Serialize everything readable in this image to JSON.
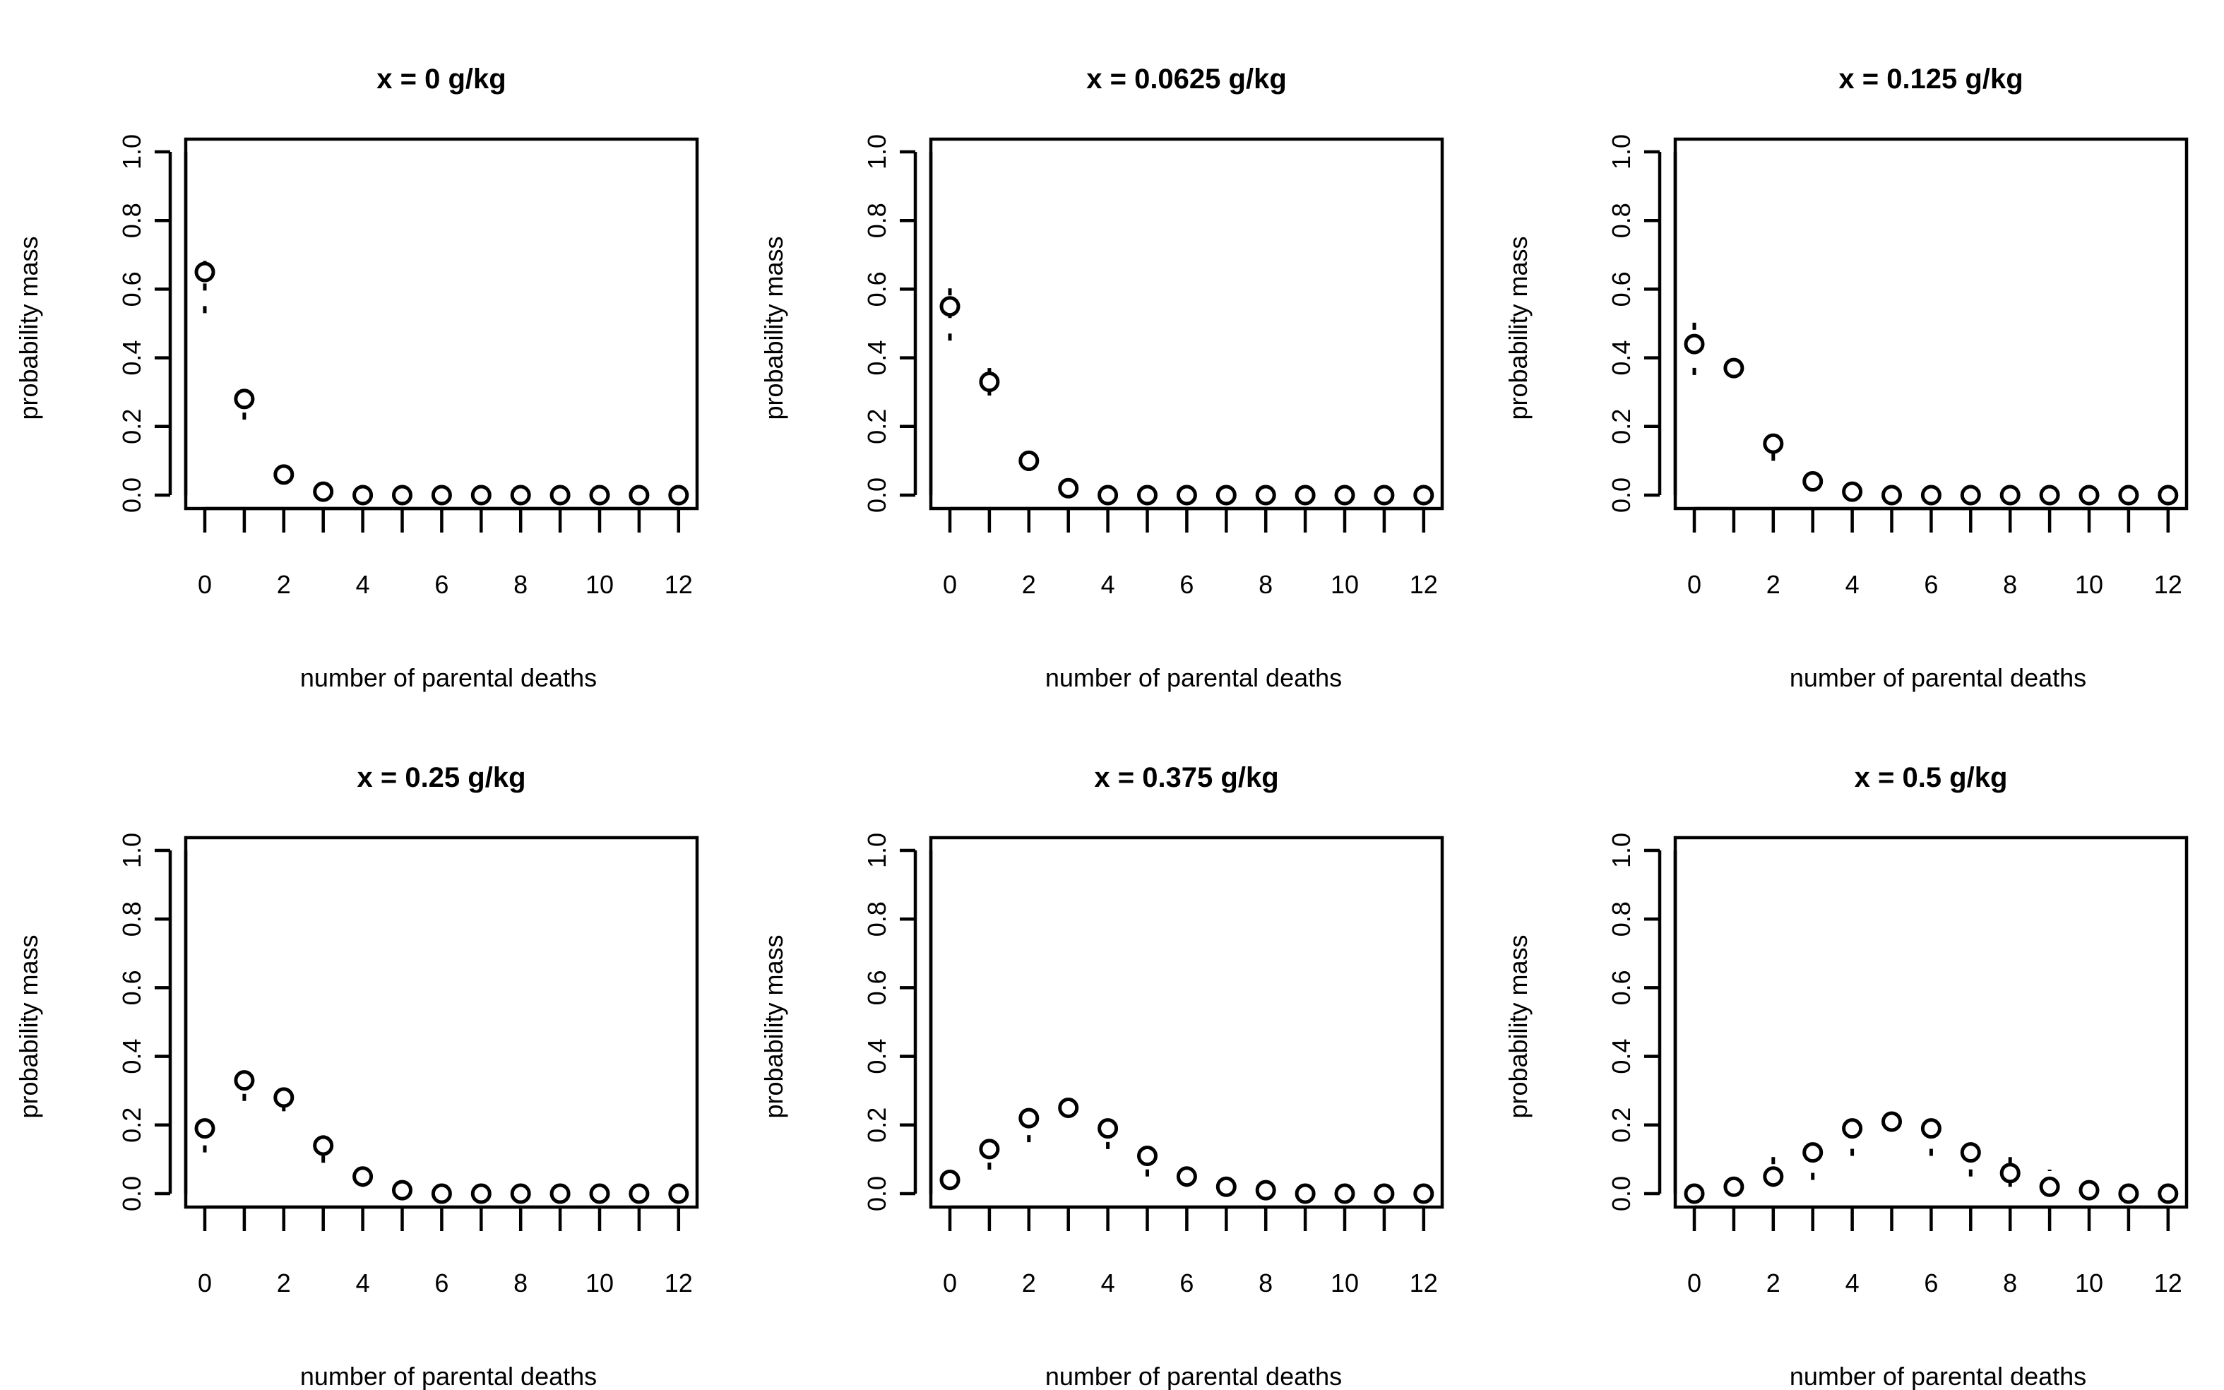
{
  "figure": {
    "xlabel": "number of parental deaths",
    "ylabel": "probability mass"
  },
  "chart_data": [
    {
      "type": "scatter",
      "title": "x = 0 g/kg",
      "xlabel": "number of parental deaths",
      "ylabel": "probability mass",
      "xlim": [
        0,
        12
      ],
      "ylim": [
        0,
        1
      ],
      "x_ticks": [
        "0",
        "2",
        "4",
        "6",
        "8",
        "10",
        "12"
      ],
      "y_ticks": [
        "0.0",
        "0.2",
        "0.4",
        "0.6",
        "0.8",
        "1.0"
      ],
      "x": [
        0,
        1,
        2,
        3,
        4,
        5,
        6,
        7,
        8,
        9,
        10,
        11,
        12
      ],
      "values": [
        0.65,
        0.28,
        0.06,
        0.01,
        0,
        0,
        0,
        0,
        0,
        0,
        0,
        0,
        0
      ],
      "lower": [
        0.53,
        0.22,
        0.04,
        0.0,
        0,
        0,
        0,
        0,
        0,
        0,
        0,
        0,
        0
      ],
      "upper": [
        0.72,
        0.35,
        0.1,
        0.02,
        0,
        0,
        0,
        0,
        0,
        0,
        0,
        0,
        0
      ]
    },
    {
      "type": "scatter",
      "title": "x = 0.0625 g/kg",
      "xlabel": "number of parental deaths",
      "ylabel": "probability mass",
      "xlim": [
        0,
        12
      ],
      "ylim": [
        0,
        1
      ],
      "x_ticks": [
        "0",
        "2",
        "4",
        "6",
        "8",
        "10",
        "12"
      ],
      "y_ticks": [
        "0.0",
        "0.2",
        "0.4",
        "0.6",
        "0.8",
        "1.0"
      ],
      "x": [
        0,
        1,
        2,
        3,
        4,
        5,
        6,
        7,
        8,
        9,
        10,
        11,
        12
      ],
      "values": [
        0.55,
        0.33,
        0.1,
        0.02,
        0,
        0,
        0,
        0,
        0,
        0,
        0,
        0,
        0
      ],
      "lower": [
        0.45,
        0.29,
        0.07,
        0.01,
        0,
        0,
        0,
        0,
        0,
        0,
        0,
        0,
        0
      ],
      "upper": [
        0.64,
        0.37,
        0.13,
        0.03,
        0,
        0,
        0,
        0,
        0,
        0,
        0,
        0,
        0
      ]
    },
    {
      "type": "scatter",
      "title": "x = 0.125 g/kg",
      "xlabel": "number of parental deaths",
      "ylabel": "probability mass",
      "xlim": [
        0,
        12
      ],
      "ylim": [
        0,
        1
      ],
      "x_ticks": [
        "0",
        "2",
        "4",
        "6",
        "8",
        "10",
        "12"
      ],
      "y_ticks": [
        "0.0",
        "0.2",
        "0.4",
        "0.6",
        "0.8",
        "1.0"
      ],
      "x": [
        0,
        1,
        2,
        3,
        4,
        5,
        6,
        7,
        8,
        9,
        10,
        11,
        12
      ],
      "values": [
        0.44,
        0.37,
        0.15,
        0.04,
        0.01,
        0,
        0,
        0,
        0,
        0,
        0,
        0,
        0
      ],
      "lower": [
        0.35,
        0.35,
        0.1,
        0.02,
        0.0,
        0,
        0,
        0,
        0,
        0,
        0,
        0,
        0
      ],
      "upper": [
        0.53,
        0.38,
        0.17,
        0.05,
        0.02,
        0,
        0,
        0,
        0,
        0,
        0,
        0,
        0
      ]
    },
    {
      "type": "scatter",
      "title": "x = 0.25 g/kg",
      "xlabel": "number of parental deaths",
      "ylabel": "probability mass",
      "xlim": [
        0,
        12
      ],
      "ylim": [
        0,
        1
      ],
      "x_ticks": [
        "0",
        "2",
        "4",
        "6",
        "8",
        "10",
        "12"
      ],
      "y_ticks": [
        "0.0",
        "0.2",
        "0.4",
        "0.6",
        "0.8",
        "1.0"
      ],
      "x": [
        0,
        1,
        2,
        3,
        4,
        5,
        6,
        7,
        8,
        9,
        10,
        11,
        12
      ],
      "values": [
        0.19,
        0.33,
        0.28,
        0.14,
        0.05,
        0.01,
        0,
        0,
        0,
        0,
        0,
        0,
        0
      ],
      "lower": [
        0.12,
        0.27,
        0.24,
        0.09,
        0.02,
        0.0,
        0,
        0,
        0,
        0,
        0,
        0,
        0
      ],
      "upper": [
        0.25,
        0.35,
        0.29,
        0.17,
        0.07,
        0.02,
        0,
        0,
        0,
        0,
        0,
        0,
        0
      ]
    },
    {
      "type": "scatter",
      "title": "x = 0.375 g/kg",
      "xlabel": "number of parental deaths",
      "ylabel": "probability mass",
      "xlim": [
        0,
        12
      ],
      "ylim": [
        0,
        1
      ],
      "x_ticks": [
        "0",
        "2",
        "4",
        "6",
        "8",
        "10",
        "12"
      ],
      "y_ticks": [
        "0.0",
        "0.2",
        "0.4",
        "0.6",
        "0.8",
        "1.0"
      ],
      "x": [
        0,
        1,
        2,
        3,
        4,
        5,
        6,
        7,
        8,
        9,
        10,
        11,
        12
      ],
      "values": [
        0.04,
        0.13,
        0.22,
        0.25,
        0.19,
        0.11,
        0.05,
        0.02,
        0.01,
        0,
        0,
        0,
        0
      ],
      "lower": [
        0.01,
        0.07,
        0.15,
        0.23,
        0.13,
        0.05,
        0.02,
        0.0,
        0.0,
        0,
        0,
        0,
        0
      ],
      "upper": [
        0.06,
        0.19,
        0.28,
        0.26,
        0.22,
        0.17,
        0.08,
        0.03,
        0.02,
        0,
        0,
        0,
        0
      ]
    },
    {
      "type": "scatter",
      "title": "x = 0.5 g/kg",
      "xlabel": "number of parental deaths",
      "ylabel": "probability mass",
      "xlim": [
        0,
        12
      ],
      "ylim": [
        0,
        1
      ],
      "x_ticks": [
        "0",
        "2",
        "4",
        "6",
        "8",
        "10",
        "12"
      ],
      "y_ticks": [
        "0.0",
        "0.2",
        "0.4",
        "0.6",
        "0.8",
        "1.0"
      ],
      "x": [
        0,
        1,
        2,
        3,
        4,
        5,
        6,
        7,
        8,
        9,
        10,
        11,
        12
      ],
      "values": [
        0.0,
        0.02,
        0.05,
        0.12,
        0.19,
        0.21,
        0.19,
        0.12,
        0.06,
        0.02,
        0.01,
        0.0,
        0.0
      ],
      "lower": [
        0.0,
        0.01,
        0.02,
        0.04,
        0.11,
        0.18,
        0.11,
        0.05,
        0.02,
        0.0,
        0.0,
        0.0,
        0.0
      ],
      "upper": [
        0.01,
        0.03,
        0.13,
        0.17,
        0.23,
        0.23,
        0.22,
        0.18,
        0.13,
        0.07,
        0.02,
        0.0,
        0.0
      ]
    }
  ]
}
